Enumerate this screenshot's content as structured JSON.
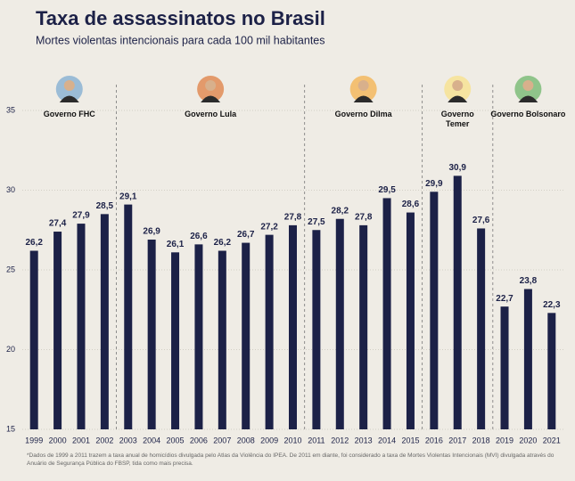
{
  "chart_data": {
    "type": "bar",
    "title": "Taxa de assassinatos no Brasil",
    "subtitle": "Mortes violentas intencionais para cada 100 mil habitantes",
    "categories": [
      "1999",
      "2000",
      "2001",
      "2002",
      "2003",
      "2004",
      "2005",
      "2006",
      "2007",
      "2008",
      "2009",
      "2010",
      "2011",
      "2012",
      "2013",
      "2014",
      "2015",
      "2016",
      "2017",
      "2018",
      "2019",
      "2020",
      "2021"
    ],
    "values": [
      26.2,
      27.4,
      27.9,
      28.5,
      29.1,
      26.9,
      26.1,
      26.6,
      26.2,
      26.7,
      27.2,
      27.8,
      27.5,
      28.2,
      27.8,
      29.5,
      28.6,
      29.9,
      30.9,
      27.6,
      22.7,
      23.8,
      22.3
    ],
    "value_labels": [
      "26,2",
      "27,4",
      "27,9",
      "28,5",
      "29,1",
      "26,9",
      "26,1",
      "26,6",
      "26,2",
      "26,7",
      "27,2",
      "27,8",
      "27,5",
      "28,2",
      "27,8",
      "29,5",
      "28,6",
      "29,9",
      "30,9",
      "27,6",
      "22,7",
      "23,8",
      "22,3"
    ],
    "color": "#1c2147",
    "ylim": [
      15,
      35
    ],
    "yticks": [
      15,
      20,
      25,
      30,
      35
    ],
    "grid": true,
    "annotations": [
      {
        "label": "Governo FHC",
        "from": "1999",
        "to": "2002"
      },
      {
        "label": "Governo Lula",
        "from": "2003",
        "to": "2010"
      },
      {
        "label": "Governo Dilma",
        "from": "2011",
        "to": "2015"
      },
      {
        "label": "Governo\nTemer",
        "from": "2016",
        "to": "2018"
      },
      {
        "label": "Governo Bolsonaro",
        "from": "2019",
        "to": "2021"
      }
    ],
    "footnote": "*Dados de 1999 a 2011 trazem a taxa anual de homicídios divulgada pelo Atlas da Violência do IPEA. De 2011 em diante, foi considerado a taxa de Mortes Violentas Intencionais (MVI) divulgada através do Anuário de Segurança Pública do FBSP, tida como mais precisa."
  }
}
